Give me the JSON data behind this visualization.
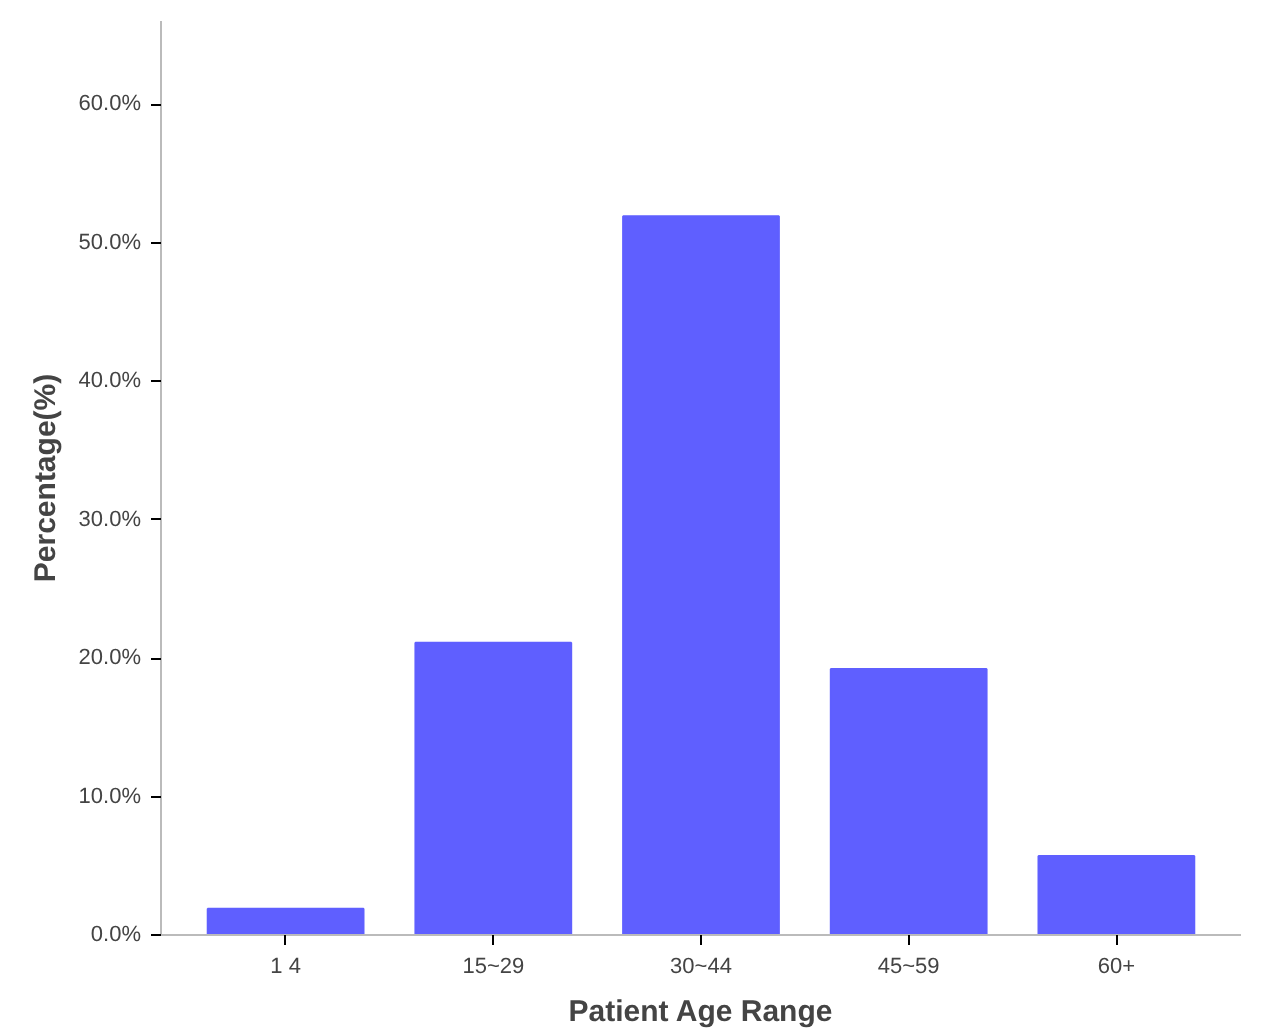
{
  "chart_data": {
    "type": "bar",
    "xlabel": "Patient Age Range",
    "ylabel": "Percentage(%)",
    "categories": [
      "1 4",
      "15~29",
      "30~44",
      "45~59",
      "60+"
    ],
    "values": [
      1.9,
      21.1,
      51.9,
      19.2,
      5.7
    ],
    "color": "#5f5fff",
    "ylim": [
      0,
      66
    ],
    "yticks": [
      {
        "value": 0,
        "label": "0.0%"
      },
      {
        "value": 10,
        "label": "10.0%"
      },
      {
        "value": 20,
        "label": "20.0%"
      },
      {
        "value": 30,
        "label": "30.0%"
      },
      {
        "value": 40,
        "label": "40.0%"
      },
      {
        "value": 50,
        "label": "50.0%"
      },
      {
        "value": 60,
        "label": "60.0%"
      }
    ],
    "grid": false
  }
}
